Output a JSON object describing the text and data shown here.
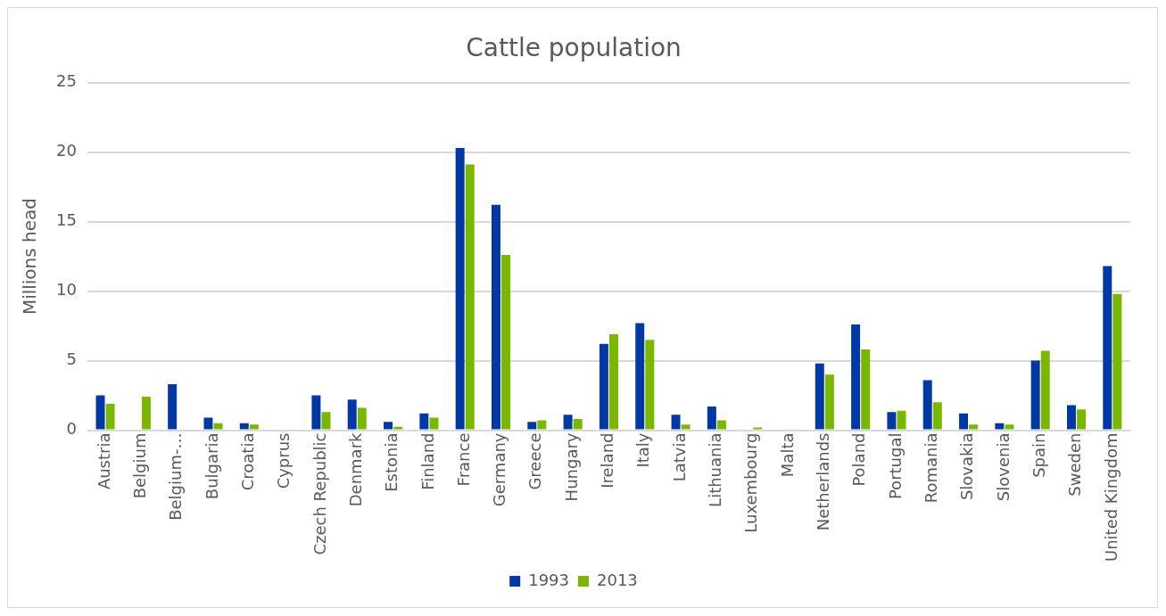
{
  "chart_data": {
    "type": "bar",
    "title": "Cattle population",
    "ylabel": "Millions head",
    "categories": [
      "Austria",
      "Belgium",
      "Belgium-…",
      "Bulgaria",
      "Croatia",
      "Cyprus",
      "Czech Republic",
      "Denmark",
      "Estonia",
      "Finland",
      "France",
      "Germany",
      "Greece",
      "Hungary",
      "Ireland",
      "Italy",
      "Latvia",
      "Lithuania",
      "Luxembourg",
      "Malta",
      "Netherlands",
      "Poland",
      "Portugal",
      "Romania",
      "Slovakia",
      "Slovenia",
      "Spain",
      "Sweden",
      "United Kingdom"
    ],
    "series": [
      {
        "name": "1993",
        "color": "#0039a6",
        "values": [
          2.5,
          null,
          3.3,
          0.9,
          0.5,
          null,
          2.5,
          2.2,
          0.6,
          1.2,
          20.3,
          16.2,
          0.6,
          1.1,
          6.2,
          7.7,
          1.1,
          1.7,
          null,
          null,
          4.8,
          7.6,
          1.3,
          3.6,
          1.2,
          0.5,
          5.0,
          1.8,
          11.8
        ]
      },
      {
        "name": "2013",
        "color": "#7ab800",
        "values": [
          1.9,
          2.4,
          null,
          0.5,
          0.4,
          null,
          1.3,
          1.6,
          0.25,
          0.9,
          19.1,
          12.6,
          0.7,
          0.8,
          6.9,
          6.5,
          0.4,
          0.7,
          0.2,
          null,
          4.0,
          5.8,
          1.4,
          2.0,
          0.4,
          0.4,
          5.7,
          1.5,
          9.8
        ]
      }
    ],
    "ylim": [
      0,
      25
    ],
    "yticks": [
      0,
      5,
      10,
      15,
      20,
      25
    ],
    "grid": "y",
    "legend": "bottom"
  }
}
